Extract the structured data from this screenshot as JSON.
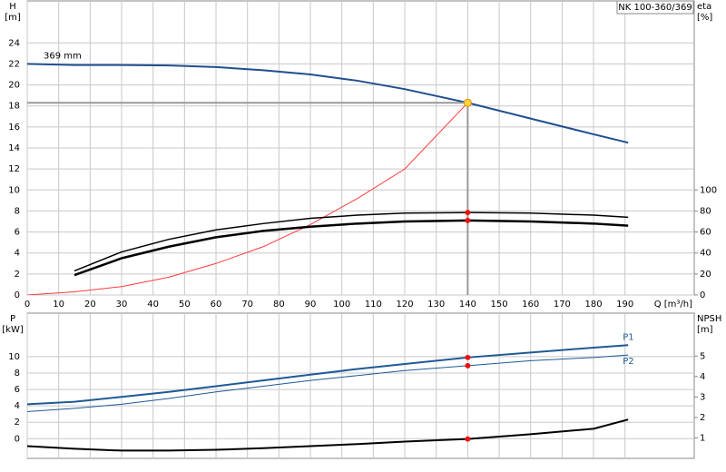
{
  "chart_data": [
    {
      "type": "line",
      "title": "NK 100-360/369",
      "y_label": "H",
      "y_unit": "[m]",
      "y2_label": "eta",
      "y2_unit": "[%]",
      "x_label": "Q [m³/h]",
      "x": [
        0,
        15,
        30,
        45,
        60,
        75,
        90,
        105,
        120,
        140,
        160,
        180,
        191
      ],
      "series": [
        {
          "name": "369 mm",
          "color": "#1f4f8f",
          "line_width": 2,
          "values": [
            22,
            21.9,
            21.9,
            21.85,
            21.7,
            21.4,
            21,
            20.4,
            19.6,
            18.3,
            16.8,
            15.3,
            14.5
          ]
        },
        {
          "color": "#ff3b3b",
          "line_width": 1,
          "values": [
            0,
            0.3,
            0.8,
            1.7,
            3,
            4.6,
            6.7,
            9.2,
            12,
            18.3,
            null,
            null,
            null
          ]
        },
        {
          "color": "#000000",
          "line_width": 1.5,
          "axis": "y2",
          "values": [
            null,
            23,
            41,
            53,
            62,
            68,
            73,
            76,
            78,
            78.5,
            78,
            76,
            74
          ]
        },
        {
          "color": "#000000",
          "line_width": 2.5,
          "axis": "y2",
          "values": [
            null,
            19,
            35,
            46,
            55,
            61,
            65,
            68,
            70,
            71,
            70,
            68,
            66
          ]
        }
      ],
      "duty_point": {
        "x": 140,
        "y": 18.3,
        "eta": [
          78.5,
          71
        ]
      },
      "xlim": [
        0,
        212
      ],
      "ylim": [
        0,
        28
      ],
      "y2lim": [
        0,
        280
      ],
      "xticks": [
        0,
        10,
        20,
        30,
        40,
        50,
        60,
        70,
        80,
        90,
        100,
        110,
        120,
        130,
        140,
        150,
        160,
        170,
        180,
        190
      ],
      "yticks": [
        0,
        2,
        4,
        6,
        8,
        10,
        12,
        14,
        16,
        18,
        20,
        22,
        24
      ],
      "y2ticks": [
        0,
        20,
        40,
        60,
        80,
        100
      ],
      "grid": true,
      "xtick_labels": true
    },
    {
      "type": "line",
      "y_label": "P",
      "y_unit": "[kW]",
      "y2_label": "NPSH",
      "y2_unit": "[m]",
      "x": [
        0,
        15,
        30,
        45,
        60,
        75,
        90,
        105,
        120,
        140,
        160,
        180,
        191
      ],
      "series": [
        {
          "name": "P1",
          "color": "#1f5a96",
          "line_width": 2,
          "values": [
            4.2,
            4.5,
            5.1,
            5.7,
            6.4,
            7.1,
            7.8,
            8.5,
            9.1,
            9.9,
            10.5,
            11.1,
            11.4
          ]
        },
        {
          "name": "P2",
          "color": "#1f5a96",
          "line_width": 1,
          "values": [
            3.3,
            3.7,
            4.2,
            4.9,
            5.7,
            6.4,
            7.1,
            7.7,
            8.3,
            8.9,
            9.5,
            9.9,
            10.2
          ]
        },
        {
          "color": "#000000",
          "line_width": 2,
          "axis": "y2",
          "values": [
            0.6,
            0.47,
            0.38,
            0.38,
            0.42,
            0.5,
            0.6,
            0.7,
            0.82,
            0.95,
            1.18,
            1.45,
            1.9
          ]
        }
      ],
      "duty_point": {
        "x": 140,
        "values": [
          9.9,
          8.9
        ],
        "npsh": 0.95
      },
      "xlim": [
        0,
        212
      ],
      "ylim": [
        -2.4,
        15.3
      ],
      "y2lim": [
        0,
        7.1
      ],
      "xticks": [
        0,
        10,
        20,
        30,
        40,
        50,
        60,
        70,
        80,
        90,
        100,
        110,
        120,
        130,
        140,
        150,
        160,
        170,
        180,
        190
      ],
      "yticks": [
        0,
        2,
        4,
        6,
        8,
        10
      ],
      "y2ticks": [
        1,
        2,
        3,
        4,
        5
      ],
      "grid": true,
      "xtick_labels": false
    }
  ]
}
